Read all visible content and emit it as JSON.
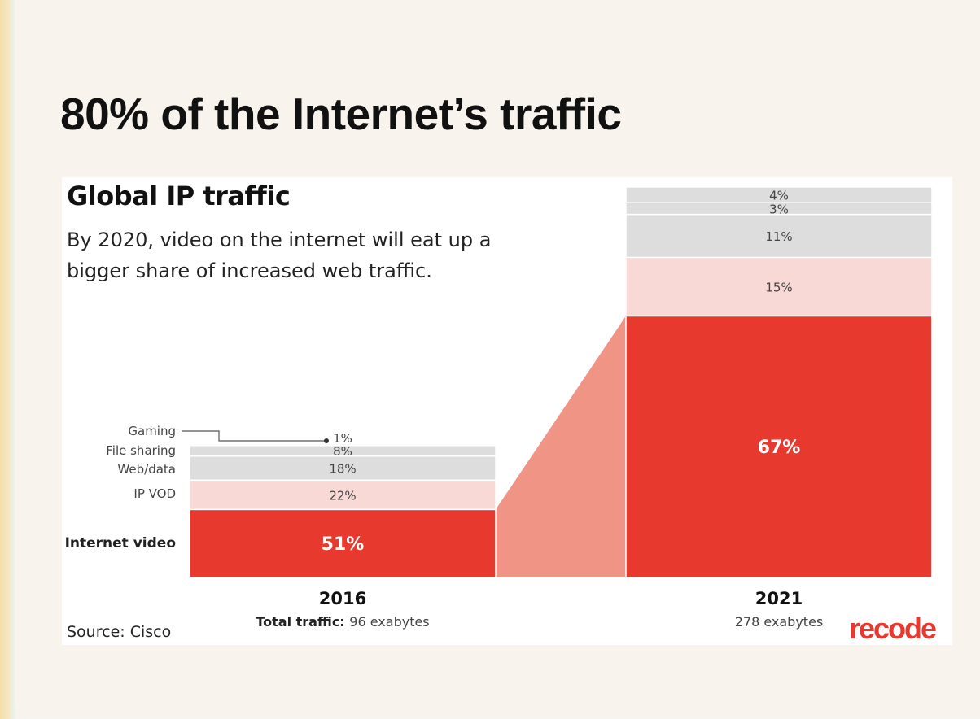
{
  "slide": {
    "title": "80% of the Internet’s traffic"
  },
  "chart_data": {
    "type": "bar",
    "stacked": true,
    "title": "Global IP traffic",
    "subtitle": "By 2020, video on the internet will eat up a bigger share of increased web traffic.",
    "categories": [
      "2016",
      "2021"
    ],
    "series": [
      {
        "name": "Internet video",
        "values": [
          51,
          67
        ],
        "color": "#e8392f"
      },
      {
        "name": "IP VOD",
        "values": [
          22,
          15
        ],
        "color": "#f9d9d5"
      },
      {
        "name": "Web/data",
        "values": [
          18,
          11
        ],
        "color": "#dddddd"
      },
      {
        "name": "File sharing",
        "values": [
          8,
          3
        ],
        "color": "#dddddd"
      },
      {
        "name": "Gaming",
        "values": [
          1,
          4
        ],
        "color": "#dddddd"
      }
    ],
    "value_labels": {
      "2016": [
        "51%",
        "22%",
        "18%",
        "8%",
        "1%"
      ],
      "2021": [
        "67%",
        "15%",
        "11%",
        "3%",
        "4%"
      ]
    },
    "totals": [
      {
        "label": "Total traffic:",
        "value": "96 exabytes",
        "exabytes": 96
      },
      {
        "label": "",
        "value": "278 exabytes",
        "exabytes": 278
      }
    ],
    "grid": false,
    "legend": "left of first bar"
  },
  "source": "Source: Cisco",
  "brand": {
    "logo_text": "recode",
    "accent": "#e8392f",
    "connector_color": "#f09486"
  }
}
